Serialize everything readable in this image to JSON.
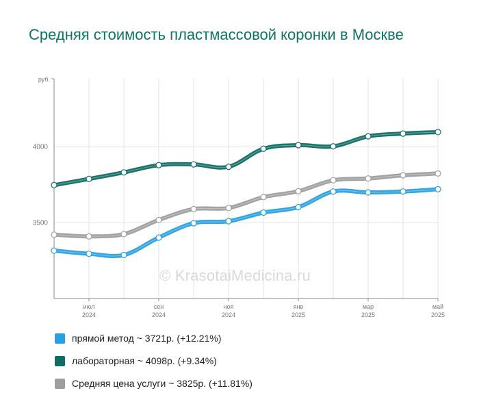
{
  "title": "Средняя стоимость пластмассовой коронки в Москве",
  "watermark": "© KrasotaiMedicina.ru",
  "colors": {
    "direct": "#27a0e0",
    "lab": "#0f6d63",
    "avg": "#9e9e9e",
    "title": "#0e7366"
  },
  "chart_data": {
    "type": "line",
    "y_unit": "руб.",
    "ylim": [
      3000,
      4450
    ],
    "y_ticks": [
      3500,
      4000
    ],
    "grid": true,
    "x": [
      "2024-06",
      "2024-07",
      "2024-08",
      "2024-09",
      "2024-10",
      "2024-11",
      "2024-12",
      "2025-01",
      "2025-02",
      "2025-03",
      "2025-04",
      "2025-05"
    ],
    "x_tick_labels": [
      {
        "month": "июл",
        "year": "2024"
      },
      {
        "month": "сен",
        "year": "2024"
      },
      {
        "month": "ноя",
        "year": "2024"
      },
      {
        "month": "янв",
        "year": "2025"
      },
      {
        "month": "мар",
        "year": "2025"
      },
      {
        "month": "май",
        "year": "2025"
      }
    ],
    "series": [
      {
        "key": "direct",
        "name": "прямой метод ~ 3721р. (+12.21%)",
        "values": [
          3316,
          3295,
          3287,
          3402,
          3497,
          3510,
          3567,
          3603,
          3706,
          3700,
          3706,
          3721
        ]
      },
      {
        "key": "lab",
        "name": "лабораторная ~ 4098р. (+9.34%)",
        "values": [
          3748,
          3789,
          3832,
          3880,
          3885,
          3869,
          3988,
          4012,
          4004,
          4070,
          4088,
          4098
        ]
      },
      {
        "key": "avg",
        "name": "Средняя цена услуги ~ 3825р. (+11.81%)",
        "values": [
          3421,
          3410,
          3425,
          3518,
          3590,
          3597,
          3669,
          3708,
          3780,
          3792,
          3813,
          3825
        ]
      }
    ],
    "legend_position": "bottom"
  }
}
